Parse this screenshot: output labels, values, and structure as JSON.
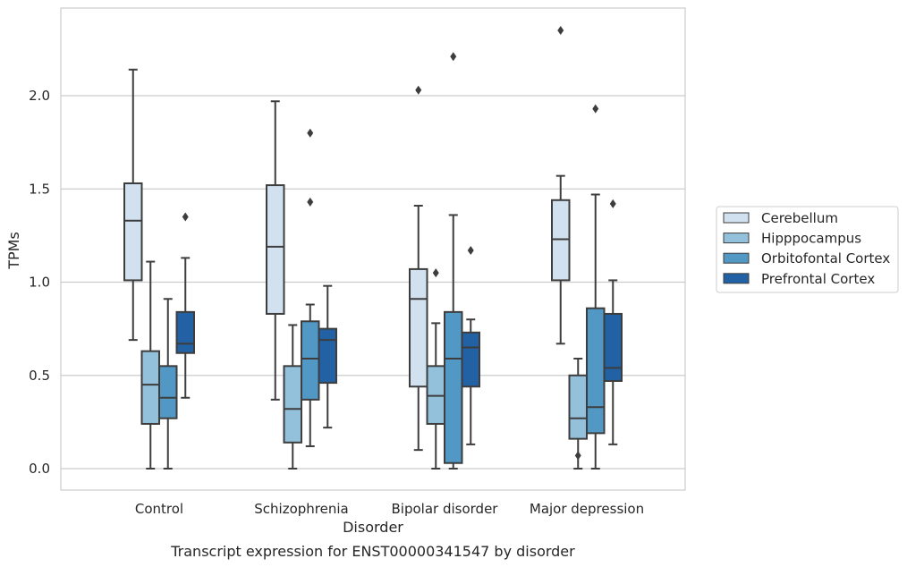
{
  "chart_data": {
    "type": "box",
    "title": "Transcript expression for ENST00000341547 by disorder",
    "xlabel": "Disorder",
    "ylabel": "TPMs",
    "ylim": [
      -0.11,
      2.48
    ],
    "yticks": [
      "0.0",
      "0.5",
      "1.0",
      "1.5",
      "2.0"
    ],
    "grid": "horizontal",
    "legend_position": "right",
    "categories": [
      "Control",
      "Schizophrenia",
      "Bipolar disorder",
      "Major depression"
    ],
    "series": [
      {
        "name": "Cerebellum",
        "color": "#d1e1f0",
        "boxes": [
          {
            "whisker_low": 0.69,
            "q1": 1.01,
            "median": 1.33,
            "q3": 1.53,
            "whisker_high": 2.14,
            "outliers": []
          },
          {
            "whisker_low": 0.37,
            "q1": 0.83,
            "median": 1.19,
            "q3": 1.52,
            "whisker_high": 1.97,
            "outliers": []
          },
          {
            "whisker_low": 0.1,
            "q1": 0.44,
            "median": 0.91,
            "q3": 1.07,
            "whisker_high": 1.41,
            "outliers": [
              2.03
            ]
          },
          {
            "whisker_low": 0.67,
            "q1": 1.01,
            "median": 1.23,
            "q3": 1.44,
            "whisker_high": 1.57,
            "outliers": [
              2.35
            ]
          }
        ]
      },
      {
        "name": "Hipppocampus",
        "color": "#93c0db",
        "boxes": [
          {
            "whisker_low": 0.0,
            "q1": 0.24,
            "median": 0.45,
            "q3": 0.63,
            "whisker_high": 1.11,
            "outliers": []
          },
          {
            "whisker_low": 0.0,
            "q1": 0.14,
            "median": 0.32,
            "q3": 0.55,
            "whisker_high": 0.77,
            "outliers": []
          },
          {
            "whisker_low": 0.0,
            "q1": 0.24,
            "median": 0.39,
            "q3": 0.55,
            "whisker_high": 0.78,
            "outliers": [
              1.05
            ]
          },
          {
            "whisker_low": 0.0,
            "q1": 0.16,
            "median": 0.27,
            "q3": 0.5,
            "whisker_high": 0.59,
            "outliers": [
              0.07
            ]
          }
        ]
      },
      {
        "name": "Orbitofontal Cortex",
        "color": "#5198c5",
        "boxes": [
          {
            "whisker_low": 0.0,
            "q1": 0.27,
            "median": 0.38,
            "q3": 0.55,
            "whisker_high": 0.91,
            "outliers": []
          },
          {
            "whisker_low": 0.12,
            "q1": 0.37,
            "median": 0.59,
            "q3": 0.79,
            "whisker_high": 0.88,
            "outliers": [
              1.43,
              1.8
            ]
          },
          {
            "whisker_low": 0.0,
            "q1": 0.03,
            "median": 0.59,
            "q3": 0.84,
            "whisker_high": 1.36,
            "outliers": [
              2.21
            ]
          },
          {
            "whisker_low": 0.0,
            "q1": 0.19,
            "median": 0.33,
            "q3": 0.86,
            "whisker_high": 1.47,
            "outliers": [
              1.93
            ]
          }
        ]
      },
      {
        "name": "Prefrontal Cortex",
        "color": "#2261a4",
        "boxes": [
          {
            "whisker_low": 0.38,
            "q1": 0.62,
            "median": 0.67,
            "q3": 0.84,
            "whisker_high": 1.13,
            "outliers": [
              1.35
            ]
          },
          {
            "whisker_low": 0.22,
            "q1": 0.46,
            "median": 0.69,
            "q3": 0.75,
            "whisker_high": 0.98,
            "outliers": []
          },
          {
            "whisker_low": 0.13,
            "q1": 0.44,
            "median": 0.65,
            "q3": 0.73,
            "whisker_high": 0.8,
            "outliers": [
              1.17
            ]
          },
          {
            "whisker_low": 0.13,
            "q1": 0.47,
            "median": 0.54,
            "q3": 0.83,
            "whisker_high": 1.01,
            "outliers": [
              1.42
            ]
          }
        ]
      }
    ]
  }
}
